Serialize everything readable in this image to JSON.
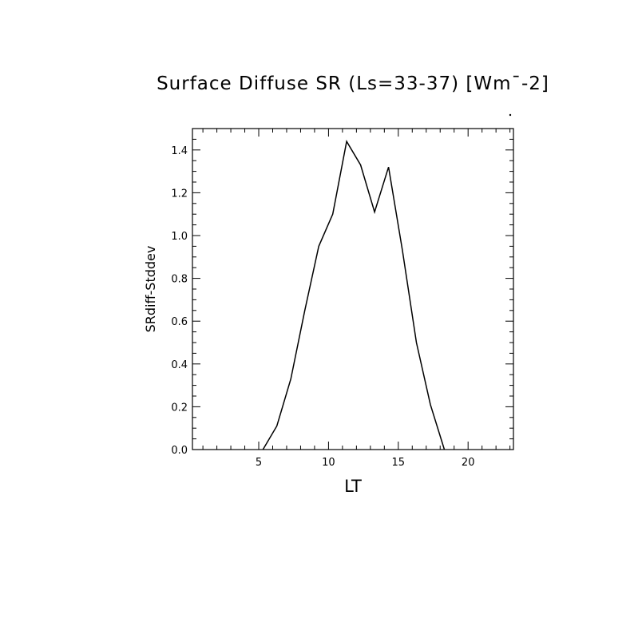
{
  "chart_data": {
    "type": "line",
    "title": "Surface Diffuse SR (Ls=33-37) [Wm¯-2]",
    "xlabel": "LT",
    "ylabel": "SRdiff-Stddev",
    "xlim": [
      0.25,
      23.25
    ],
    "ylim": [
      0.0,
      1.5
    ],
    "x_ticks": [
      5,
      10,
      15,
      20
    ],
    "x_tick_labels": [
      "5",
      "10",
      "15",
      "20"
    ],
    "y_ticks": [
      0.0,
      0.2,
      0.4,
      0.6,
      0.8,
      1.0,
      1.2,
      1.4
    ],
    "y_tick_labels": [
      "0.0",
      "0.2",
      "0.4",
      "0.6",
      "0.8",
      "1.0",
      "1.2",
      "1.4"
    ],
    "grid": false,
    "series": [
      {
        "x": [
          5.3,
          6.3,
          7.3,
          8.3,
          9.3,
          10.3,
          11.3,
          12.3,
          13.3,
          14.3,
          15.3,
          16.3,
          17.3,
          18.3
        ],
        "y": [
          0.0,
          0.11,
          0.33,
          0.65,
          0.95,
          1.1,
          1.44,
          1.33,
          1.11,
          1.32,
          0.93,
          0.5,
          0.21,
          0.0
        ]
      }
    ]
  }
}
